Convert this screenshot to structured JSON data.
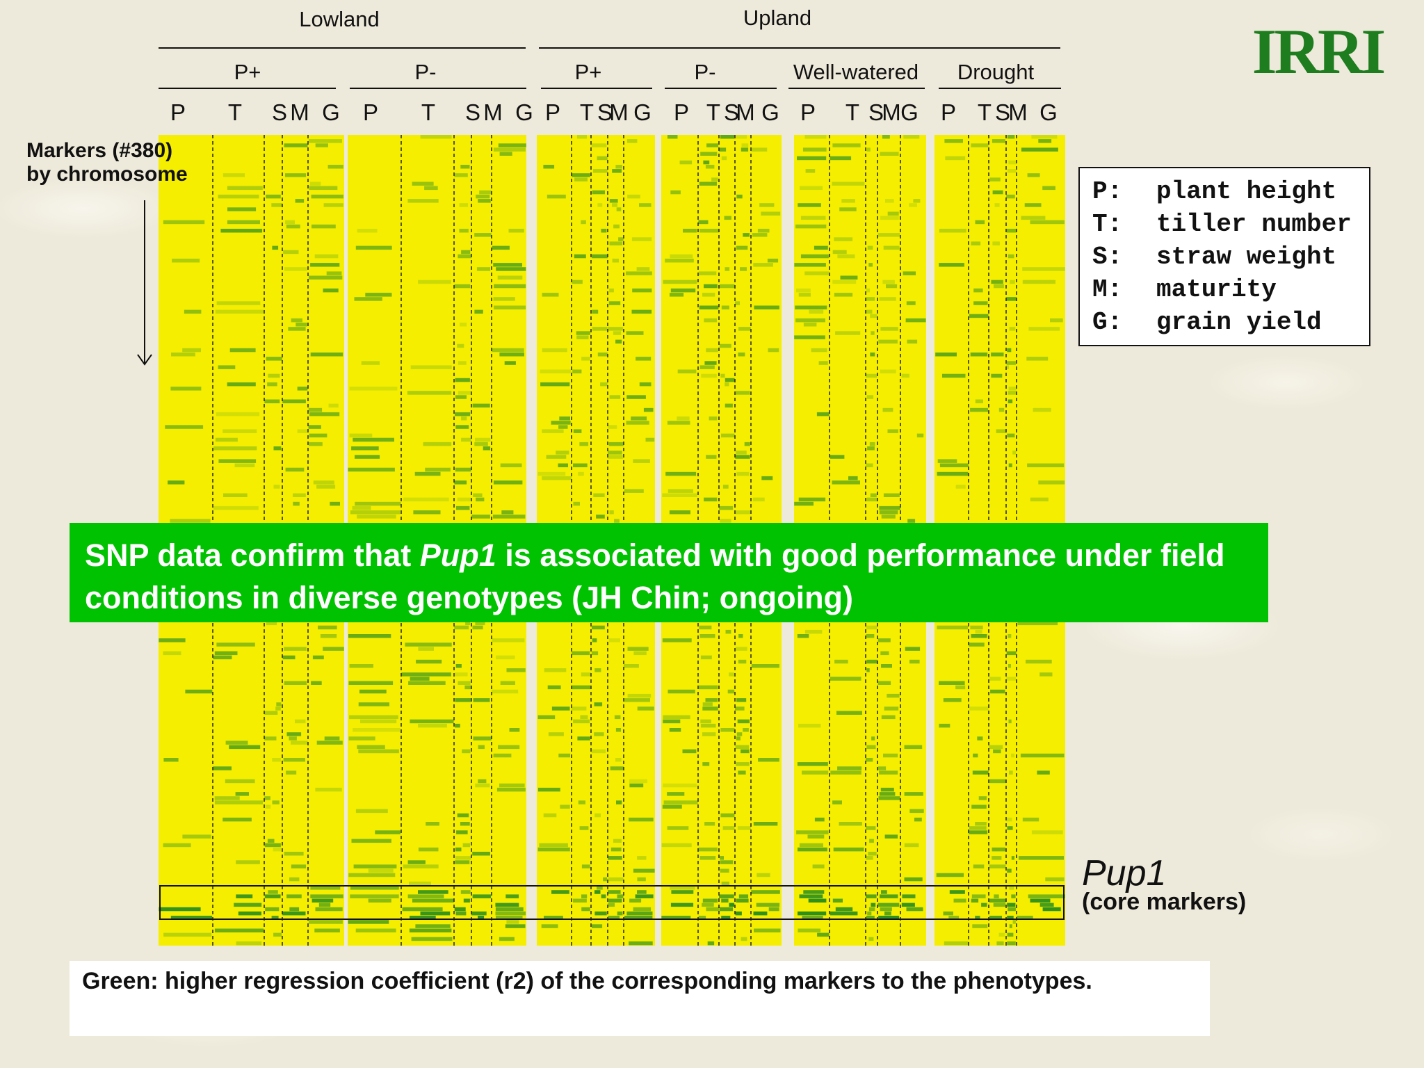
{
  "slide": {
    "logo": "IRRI",
    "markers_label_line1": "Markers (#380)",
    "markers_label_line2": "by chromosome",
    "banner_pre": "SNP data confirm that ",
    "banner_italic": "Pup1",
    "banner_post": " is associated with good performance under field conditions in diverse genotypes (JH Chin; ongoing)",
    "pup1_label": "Pup1",
    "pup1_sub": "(core markers)",
    "footer": "Green: higher regression coefficient (r2) of the corresponding markers to the phenotypes."
  },
  "legend": [
    {
      "key": "P:",
      "value": "plant height"
    },
    {
      "key": "T:",
      "value": "tiller number"
    },
    {
      "key": "S:",
      "value": "straw weight"
    },
    {
      "key": "M:",
      "value": "maturity"
    },
    {
      "key": "G:",
      "value": "grain yield"
    }
  ],
  "chart_data": {
    "type": "heatmap",
    "top_groups": [
      "Lowland",
      "Upland"
    ],
    "sub_groups": [
      "P+",
      "P-",
      "P+",
      "P-",
      "Well-watered",
      "Drought"
    ],
    "panel_columns": [
      [
        "P",
        "T",
        "S",
        "M",
        "G"
      ],
      [
        "P",
        "T",
        "S",
        "M",
        "G"
      ],
      [
        "P",
        "T",
        "S",
        "M",
        "G"
      ],
      [
        "P",
        "T",
        "S",
        "M",
        "G"
      ],
      [
        "P",
        "T",
        "S",
        "M",
        "G"
      ],
      [
        "P",
        "T",
        "S",
        "M",
        "G"
      ]
    ],
    "marker_count": 380,
    "color_low": "#f5ee00",
    "color_high": "#1f8a1f",
    "highlight_region": "Pup1",
    "colors": {
      "banner": "#00c200",
      "logo": "#1e7d1e"
    }
  }
}
